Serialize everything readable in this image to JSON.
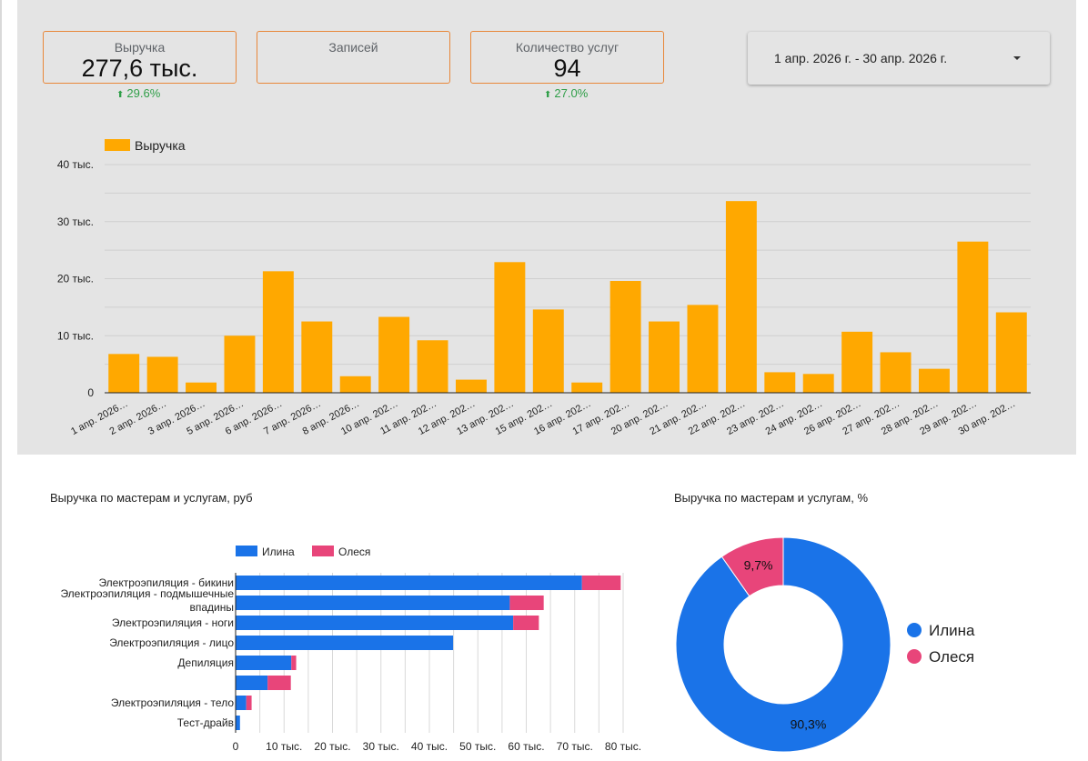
{
  "kpis": [
    {
      "label": "Выручка",
      "value": "277,6 тыс.",
      "delta": "29.6%"
    },
    {
      "label": "Записей",
      "value": "",
      "delta": ""
    },
    {
      "label": "Количество услуг",
      "value": "94",
      "delta": "27.0%"
    }
  ],
  "date_range": {
    "label": "1 апр. 2026 г. - 30 апр. 2026 г."
  },
  "colors": {
    "revenue": "#ffa800",
    "ilina": "#1a73e8",
    "olesya": "#e8457a",
    "delta_up": "#2e9e47",
    "card_border": "#e8873a"
  },
  "chart_data": [
    {
      "type": "bar",
      "legend": [
        "Выручка"
      ],
      "legend_position": "top-left",
      "ylim": [
        0,
        40000
      ],
      "y_ticks": [
        0,
        10000,
        20000,
        30000,
        40000
      ],
      "y_tick_labels": [
        "0",
        "10 тыс.",
        "20 тыс.",
        "30 тыс.",
        "40 тыс."
      ],
      "grid": true,
      "categories": [
        "1 апр. 2026…",
        "2 апр. 2026…",
        "3 апр. 2026…",
        "5 апр. 2026…",
        "6 апр. 2026…",
        "7 апр. 2026…",
        "8 апр. 2026…",
        "10 апр. 202…",
        "11 апр. 202…",
        "12 апр. 202…",
        "13 апр. 202…",
        "15 апр. 202…",
        "16 апр. 202…",
        "17 апр. 202…",
        "20 апр. 202…",
        "21 апр. 202…",
        "22 апр. 202…",
        "23 апр. 202…",
        "24 апр. 202…",
        "26 апр. 202…",
        "27 апр. 202…",
        "28 апр. 202…",
        "29 апр. 202…",
        "30 апр. 202…"
      ],
      "series": [
        {
          "name": "Выручка",
          "values": [
            6800,
            6300,
            1800,
            10000,
            21300,
            12500,
            2900,
            13300,
            9200,
            2300,
            22900,
            14600,
            1800,
            19600,
            12500,
            15400,
            33600,
            3600,
            3300,
            10700,
            7100,
            4200,
            26500,
            14100
          ]
        }
      ]
    },
    {
      "type": "bar",
      "orientation": "horizontal",
      "stacked": true,
      "title": "Выручка по мастерам и услугам, руб",
      "legend_position": "top",
      "categories": [
        "Электроэпиляция - бикини",
        "Электроэпиляция - подмышечные впадины",
        "Электроэпиляция - ноги",
        "Электроэпиляция - лицо",
        "Депиляция",
        "",
        "Электроэпиляция - тело",
        "Тест-драйв"
      ],
      "xlim": [
        0,
        80000
      ],
      "x_ticks": [
        0,
        10000,
        20000,
        30000,
        40000,
        50000,
        60000,
        70000,
        80000
      ],
      "x_tick_labels": [
        "0",
        "10 тыс.",
        "20 тыс.",
        "30 тыс.",
        "40 тыс.",
        "50 тыс.",
        "60 тыс.",
        "70 тыс.",
        "80 тыс."
      ],
      "grid": true,
      "series": [
        {
          "name": "Илина",
          "values": [
            71500,
            56600,
            57300,
            44900,
            11500,
            6600,
            2200,
            900
          ]
        },
        {
          "name": "Олеся",
          "values": [
            8000,
            7000,
            5300,
            0,
            1000,
            4800,
            1100,
            0
          ]
        }
      ]
    },
    {
      "type": "pie",
      "donut": true,
      "title": "Выручка по мастерам и услугам, %",
      "legend_position": "right",
      "labels": [
        "Илина",
        "Олеся"
      ],
      "values": [
        90.3,
        9.7
      ],
      "value_labels": [
        "90,3%",
        "9,7%"
      ]
    }
  ]
}
